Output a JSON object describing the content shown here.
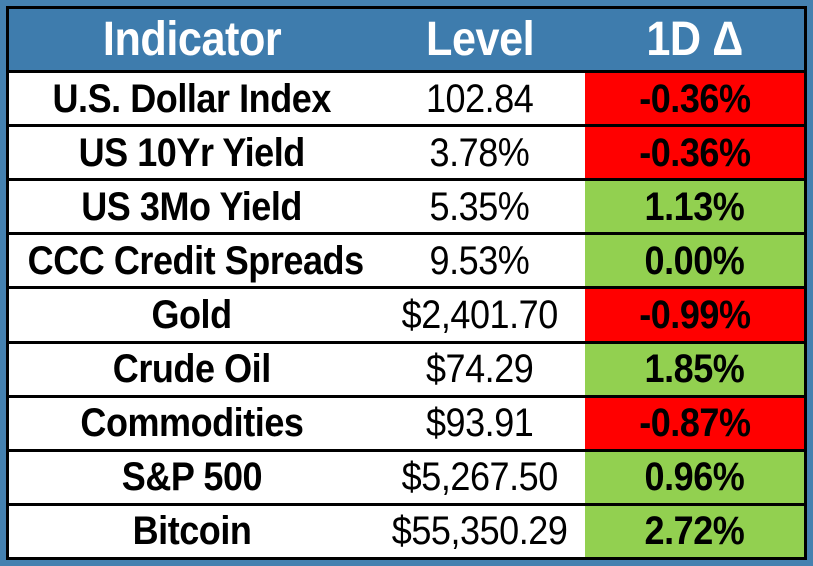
{
  "table": {
    "columns": [
      {
        "label": "Indicator"
      },
      {
        "label": "Level"
      },
      {
        "label": "1D Δ"
      }
    ],
    "rows": [
      {
        "indicator": "U.S. Dollar Index",
        "level": "102.84",
        "change": "-0.36%",
        "direction": "down"
      },
      {
        "indicator": "US 10Yr Yield",
        "level": "3.78%",
        "change": "-0.36%",
        "direction": "down"
      },
      {
        "indicator": "US 3Mo Yield",
        "level": "5.35%",
        "change": "1.13%",
        "direction": "up"
      },
      {
        "indicator": "CCC Credit Spreads",
        "level": "9.53%",
        "change": "0.00%",
        "direction": "up"
      },
      {
        "indicator": "Gold",
        "level": "$2,401.70",
        "change": "-0.99%",
        "direction": "down"
      },
      {
        "indicator": "Crude Oil",
        "level": "$74.29",
        "change": "1.85%",
        "direction": "up"
      },
      {
        "indicator": "Commodities",
        "level": "$93.91",
        "change": "-0.87%",
        "direction": "down"
      },
      {
        "indicator": "S&P 500",
        "level": "$5,267.50",
        "change": "0.96%",
        "direction": "up"
      },
      {
        "indicator": "Bitcoin",
        "level": "$55,350.29",
        "change": "2.72%",
        "direction": "up"
      }
    ],
    "colors": {
      "frame": "#4581B0",
      "header_bg": "#3E7CAD",
      "header_text": "#FFFFFF",
      "positive_bg": "#92D050",
      "negative_bg": "#FF0000",
      "body_text": "#000000",
      "border": "#000000"
    }
  }
}
